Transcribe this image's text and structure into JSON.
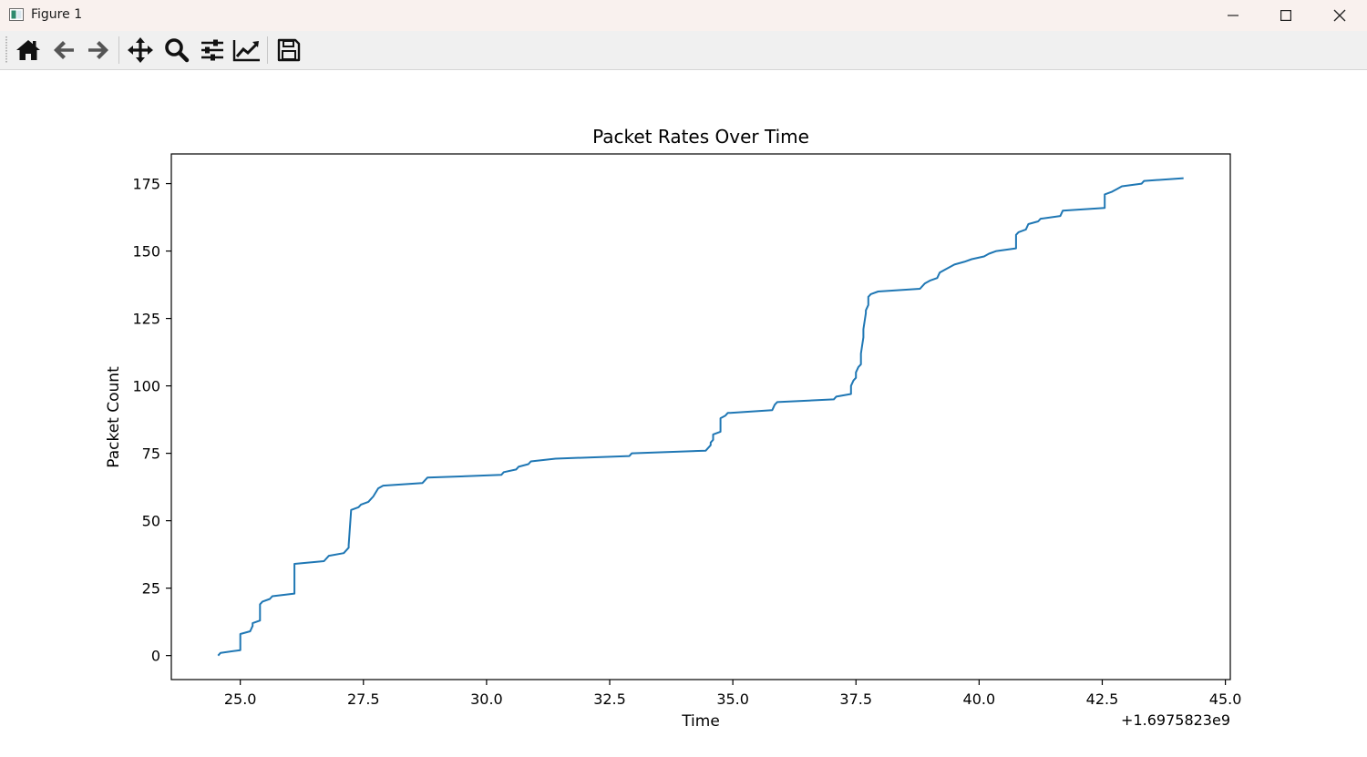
{
  "window": {
    "title": "Figure 1",
    "icons": [
      "app-icon",
      "minimize-icon",
      "maximize-icon",
      "close-icon"
    ]
  },
  "toolbar": {
    "buttons": [
      {
        "name": "home",
        "icon": "home-icon"
      },
      {
        "name": "back",
        "icon": "arrow-left-icon"
      },
      {
        "name": "forward",
        "icon": "arrow-right-icon"
      },
      {
        "name": "pan",
        "icon": "move-icon"
      },
      {
        "name": "zoom",
        "icon": "magnifier-icon"
      },
      {
        "name": "configure-subplots",
        "icon": "sliders-icon"
      },
      {
        "name": "edit-axis",
        "icon": "line-chart-icon"
      },
      {
        "name": "save",
        "icon": "floppy-disk-icon"
      }
    ]
  },
  "chart_data": {
    "type": "line",
    "title": "Packet Rates Over Time",
    "xlabel": "Time",
    "ylabel": "Packet Count",
    "x_offset_label": "+1.6975823e9",
    "xlim": [
      23.6,
      45.1
    ],
    "ylim": [
      -8.9,
      186.0
    ],
    "xticks": [
      25.0,
      27.5,
      30.0,
      32.5,
      35.0,
      37.5,
      40.0,
      42.5,
      45.0
    ],
    "xtick_labels": [
      "25.0",
      "27.5",
      "30.0",
      "32.5",
      "35.0",
      "37.5",
      "40.0",
      "42.5",
      "45.0"
    ],
    "yticks": [
      0,
      25,
      50,
      75,
      100,
      125,
      150,
      175
    ],
    "ytick_labels": [
      "0",
      "25",
      "50",
      "75",
      "100",
      "125",
      "150",
      "175"
    ],
    "grid": false,
    "series": [
      {
        "color": "#1f77b4",
        "x": [
          24.55,
          24.6,
          25.0,
          25.0,
          25.2,
          25.25,
          25.25,
          25.4,
          25.4,
          25.45,
          25.6,
          25.65,
          26.1,
          26.1,
          26.7,
          26.8,
          27.1,
          27.15,
          27.2,
          27.2,
          27.25,
          27.4,
          27.45,
          27.6,
          27.65,
          27.7,
          27.8,
          27.9,
          28.7,
          28.8,
          30.3,
          30.35,
          30.6,
          30.65,
          30.85,
          30.9,
          31.4,
          32.9,
          32.95,
          34.45,
          34.5,
          34.55,
          34.55,
          34.6,
          34.6,
          34.75,
          34.75,
          34.85,
          34.9,
          34.95,
          35.8,
          35.85,
          35.9,
          37.05,
          37.1,
          37.4,
          37.4,
          37.45,
          37.5,
          37.5,
          37.55,
          37.6,
          37.6,
          37.65,
          37.65,
          37.7,
          37.7,
          37.75,
          37.75,
          37.8,
          37.95,
          38.8,
          38.9,
          39.0,
          39.15,
          39.2,
          39.3,
          39.5,
          39.7,
          39.85,
          40.1,
          40.2,
          40.35,
          40.75,
          40.75,
          40.8,
          40.95,
          41.0,
          41.2,
          41.25,
          41.65,
          41.7,
          42.55,
          42.55,
          42.7,
          42.8,
          42.9,
          43.3,
          43.35,
          44.15
        ],
        "y": [
          0,
          1,
          2,
          8,
          9,
          11,
          12,
          13,
          19,
          20,
          21,
          22,
          23,
          34,
          35,
          37,
          38,
          39,
          40,
          41,
          54,
          55,
          56,
          57,
          58,
          59,
          62,
          63,
          64,
          66,
          67,
          68,
          69,
          70,
          71,
          72,
          73,
          74,
          75,
          76,
          77,
          78,
          79,
          80,
          82,
          83,
          88,
          89,
          90,
          90,
          91,
          93,
          94,
          95,
          96,
          97,
          100,
          102,
          103,
          105,
          107,
          108,
          112,
          118,
          121,
          127,
          128,
          130,
          133,
          134,
          135,
          136,
          138,
          139,
          140,
          142,
          143,
          145,
          146,
          147,
          148,
          149,
          150,
          151,
          156,
          157,
          158,
          160,
          161,
          162,
          163,
          165,
          166,
          171,
          172,
          173,
          174,
          175,
          176,
          177
        ]
      }
    ]
  }
}
